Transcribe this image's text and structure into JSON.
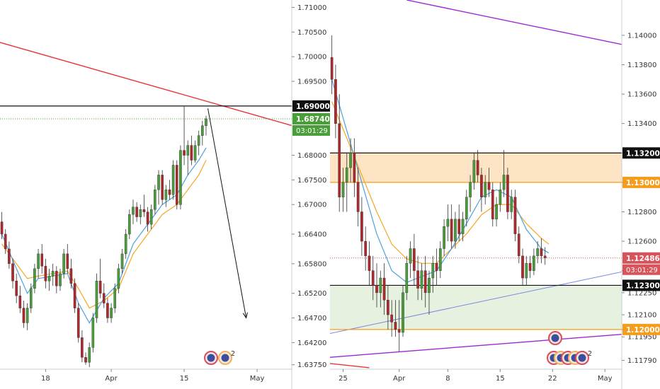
{
  "colors": {
    "up": "#4a9e3a",
    "down": "#b0282d",
    "ema_fast": "#4aa3df",
    "ema_slow": "#f5a623",
    "red_line": "#e8353a",
    "purple_line": "#9c27d6",
    "blue_line": "#7b88e0",
    "resistance_zone": "#fde4c4",
    "support_zone": "#e6f2df",
    "price_green": "#4a9e3a",
    "price_red": "#d9535a",
    "level_black": "#111111",
    "level_orange": "#f59c1a"
  },
  "chart_data": [
    {
      "type": "candlestick",
      "title": "",
      "y_ticks": [
        "1.71000",
        "1.70500",
        "1.70000",
        "1.69500",
        "1.69000",
        "1.68000",
        "1.67500",
        "1.67000",
        "1.66400",
        "1.65800",
        "1.65200",
        "1.64700",
        "1.64200",
        "1.63750"
      ],
      "y_tick_values": [
        1.71,
        1.705,
        1.7,
        1.695,
        1.69,
        1.68,
        1.675,
        1.67,
        1.664,
        1.658,
        1.652,
        1.647,
        1.642,
        1.6375
      ],
      "ylim": [
        1.6366,
        1.7115
      ],
      "x_ticks": [
        "18",
        "Apr",
        "15",
        "May"
      ],
      "x_tick_bars": [
        12,
        30,
        50,
        70
      ],
      "n_slots": 80,
      "ohlc": [
        [
          1.6665,
          1.6685,
          1.663,
          1.664
        ],
        [
          1.664,
          1.665,
          1.66,
          1.661
        ],
        [
          1.661,
          1.6625,
          1.657,
          1.658
        ],
        [
          1.658,
          1.659,
          1.653,
          1.6545
        ],
        [
          1.6545,
          1.656,
          1.65,
          1.6515
        ],
        [
          1.6515,
          1.6535,
          1.648,
          1.649
        ],
        [
          1.649,
          1.6505,
          1.645,
          1.646
        ],
        [
          1.646,
          1.65,
          1.6445,
          1.649
        ],
        [
          1.649,
          1.654,
          1.648,
          1.653
        ],
        [
          1.653,
          1.658,
          1.652,
          1.657
        ],
        [
          1.657,
          1.661,
          1.655,
          1.66
        ],
        [
          1.66,
          1.662,
          1.656,
          1.6575
        ],
        [
          1.6575,
          1.659,
          1.653,
          1.6545
        ],
        [
          1.6545,
          1.657,
          1.6525,
          1.6555
        ],
        [
          1.6555,
          1.658,
          1.6535,
          1.6565
        ],
        [
          1.6565,
          1.6575,
          1.652,
          1.6535
        ],
        [
          1.6535,
          1.657,
          1.6525,
          1.656
        ],
        [
          1.656,
          1.661,
          1.655,
          1.66
        ],
        [
          1.66,
          1.662,
          1.656,
          1.657
        ],
        [
          1.657,
          1.659,
          1.653,
          1.654
        ],
        [
          1.654,
          1.655,
          1.648,
          1.649
        ],
        [
          1.649,
          1.65,
          1.642,
          1.643
        ],
        [
          1.643,
          1.6445,
          1.638,
          1.639
        ],
        [
          1.639,
          1.64,
          1.6375,
          1.638
        ],
        [
          1.638,
          1.642,
          1.637,
          1.641
        ],
        [
          1.641,
          1.648,
          1.64,
          1.647
        ],
        [
          1.647,
          1.656,
          1.646,
          1.6545
        ],
        [
          1.6545,
          1.659,
          1.651,
          1.652
        ],
        [
          1.652,
          1.654,
          1.649,
          1.65
        ],
        [
          1.65,
          1.651,
          1.646,
          1.647
        ],
        [
          1.647,
          1.65,
          1.646,
          1.649
        ],
        [
          1.649,
          1.654,
          1.648,
          1.653
        ],
        [
          1.653,
          1.658,
          1.652,
          1.657
        ],
        [
          1.657,
          1.661,
          1.656,
          1.66
        ],
        [
          1.66,
          1.665,
          1.659,
          1.664
        ],
        [
          1.664,
          1.669,
          1.663,
          1.668
        ],
        [
          1.668,
          1.671,
          1.666,
          1.6695
        ],
        [
          1.6695,
          1.6705,
          1.6665,
          1.6675
        ],
        [
          1.6675,
          1.67,
          1.666,
          1.669
        ],
        [
          1.669,
          1.672,
          1.6675,
          1.6685
        ],
        [
          1.6685,
          1.6695,
          1.6645,
          1.666
        ],
        [
          1.666,
          1.67,
          1.665,
          1.669
        ],
        [
          1.669,
          1.674,
          1.668,
          1.673
        ],
        [
          1.673,
          1.677,
          1.67,
          1.676
        ],
        [
          1.676,
          1.677,
          1.67,
          1.671
        ],
        [
          1.671,
          1.674,
          1.6695,
          1.673
        ],
        [
          1.673,
          1.675,
          1.671,
          1.672
        ],
        [
          1.672,
          1.679,
          1.671,
          1.678
        ],
        [
          1.678,
          1.679,
          1.669,
          1.67
        ],
        [
          1.67,
          1.682,
          1.669,
          1.681
        ],
        [
          1.681,
          1.69,
          1.678,
          1.68
        ],
        [
          1.68,
          1.683,
          1.676,
          1.682
        ],
        [
          1.682,
          1.684,
          1.678,
          1.679
        ],
        [
          1.679,
          1.683,
          1.6785,
          1.682
        ],
        [
          1.682,
          1.685,
          1.68,
          1.684
        ],
        [
          1.684,
          1.687,
          1.682,
          1.686
        ],
        [
          1.686,
          1.688,
          1.684,
          1.6874
        ]
      ],
      "ema_fast": [
        [
          0,
          1.664
        ],
        [
          4,
          1.657
        ],
        [
          7,
          1.652
        ],
        [
          10,
          1.655
        ],
        [
          14,
          1.6555
        ],
        [
          18,
          1.656
        ],
        [
          21,
          1.65
        ],
        [
          24,
          1.646
        ],
        [
          28,
          1.651
        ],
        [
          32,
          1.654
        ],
        [
          36,
          1.662
        ],
        [
          40,
          1.666
        ],
        [
          44,
          1.67
        ],
        [
          48,
          1.672
        ],
        [
          51,
          1.676
        ],
        [
          54,
          1.679
        ],
        [
          56,
          1.6815
        ]
      ],
      "ema_slow": [
        [
          0,
          1.662
        ],
        [
          4,
          1.658
        ],
        [
          7,
          1.655
        ],
        [
          10,
          1.6555
        ],
        [
          14,
          1.656
        ],
        [
          18,
          1.6565
        ],
        [
          21,
          1.653
        ],
        [
          24,
          1.649
        ],
        [
          28,
          1.6505
        ],
        [
          32,
          1.653
        ],
        [
          36,
          1.66
        ],
        [
          40,
          1.664
        ],
        [
          44,
          1.668
        ],
        [
          48,
          1.67
        ],
        [
          51,
          1.673
        ],
        [
          54,
          1.676
        ],
        [
          56,
          1.679
        ]
      ],
      "level_line": 1.69,
      "trend_line": [
        [
          -1,
          1.703
        ],
        [
          82,
          1.6855
        ]
      ],
      "projection_arrow": [
        [
          56.5,
          1.6895
        ],
        [
          67,
          1.647
        ]
      ],
      "dotted_price": 1.6874,
      "price_label": "1.68740",
      "countdown": "03:01:29",
      "level_label": "1.69000"
    },
    {
      "type": "candlestick",
      "title": "",
      "y_ticks": [
        "1.14000",
        "1.13800",
        "1.13600",
        "1.13400",
        "1.13200",
        "1.13000",
        "1.12800",
        "1.12600",
        "1.12400",
        "1.12300",
        "1.12250",
        "1.12100",
        "1.12000",
        "1.11950",
        "1.11790"
      ],
      "y_tick_values": [
        1.14,
        1.138,
        1.136,
        1.134,
        1.132,
        1.13,
        1.128,
        1.126,
        1.124,
        1.123,
        1.1225,
        1.121,
        1.12,
        1.1195,
        1.1179
      ],
      "ylim": [
        1.1173,
        1.1424
      ],
      "x_ticks": [
        "25",
        "Apr",
        "8",
        "15",
        "22",
        "May"
      ],
      "x_tick_bars": [
        3,
        18,
        31,
        45,
        59,
        73
      ],
      "n_slots": 78,
      "ohlc": [
        [
          1.1385,
          1.14,
          1.136,
          1.137
        ],
        [
          1.137,
          1.138,
          1.133,
          1.134
        ],
        [
          1.134,
          1.136,
          1.128,
          1.129
        ],
        [
          1.129,
          1.131,
          1.128,
          1.13
        ],
        [
          1.13,
          1.132,
          1.128,
          1.131
        ],
        [
          1.131,
          1.133,
          1.13,
          1.132
        ],
        [
          1.132,
          1.133,
          1.129,
          1.13
        ],
        [
          1.13,
          1.131,
          1.127,
          1.128
        ],
        [
          1.128,
          1.129,
          1.125,
          1.126
        ],
        [
          1.126,
          1.127,
          1.124,
          1.125
        ],
        [
          1.125,
          1.126,
          1.123,
          1.124
        ],
        [
          1.124,
          1.125,
          1.122,
          1.123
        ],
        [
          1.123,
          1.1245,
          1.1215,
          1.1225
        ],
        [
          1.1225,
          1.124,
          1.1215,
          1.1235
        ],
        [
          1.1235,
          1.1245,
          1.121,
          1.122
        ],
        [
          1.122,
          1.123,
          1.12,
          1.121
        ],
        [
          1.121,
          1.122,
          1.1195,
          1.1205
        ],
        [
          1.1205,
          1.122,
          1.1195,
          1.12
        ],
        [
          1.12,
          1.122,
          1.1185,
          1.1198
        ],
        [
          1.1198,
          1.123,
          1.1195,
          1.1225
        ],
        [
          1.1225,
          1.125,
          1.122,
          1.1245
        ],
        [
          1.1245,
          1.126,
          1.1235,
          1.1255
        ],
        [
          1.1255,
          1.1265,
          1.123,
          1.124
        ],
        [
          1.124,
          1.125,
          1.122,
          1.1228
        ],
        [
          1.1228,
          1.1245,
          1.122,
          1.124
        ],
        [
          1.124,
          1.125,
          1.1215,
          1.1225
        ],
        [
          1.1225,
          1.124,
          1.121,
          1.1235
        ],
        [
          1.1235,
          1.125,
          1.1225,
          1.1245
        ],
        [
          1.1245,
          1.1255,
          1.123,
          1.124
        ],
        [
          1.124,
          1.126,
          1.1235,
          1.1255
        ],
        [
          1.1255,
          1.1275,
          1.125,
          1.127
        ],
        [
          1.127,
          1.1285,
          1.126,
          1.1275
        ],
        [
          1.1275,
          1.1285,
          1.1255,
          1.126
        ],
        [
          1.126,
          1.128,
          1.1255,
          1.1275
        ],
        [
          1.1275,
          1.1285,
          1.126,
          1.1265
        ],
        [
          1.1265,
          1.128,
          1.126,
          1.1275
        ],
        [
          1.1275,
          1.1295,
          1.127,
          1.129
        ],
        [
          1.129,
          1.1305,
          1.128,
          1.13
        ],
        [
          1.13,
          1.132,
          1.1295,
          1.1315
        ],
        [
          1.1315,
          1.1322,
          1.13,
          1.1305
        ],
        [
          1.1305,
          1.131,
          1.128,
          1.129
        ],
        [
          1.129,
          1.1305,
          1.1285,
          1.13
        ],
        [
          1.13,
          1.131,
          1.129,
          1.1295
        ],
        [
          1.1295,
          1.13,
          1.127,
          1.1275
        ],
        [
          1.1275,
          1.129,
          1.127,
          1.1285
        ],
        [
          1.1285,
          1.13,
          1.128,
          1.1295
        ],
        [
          1.1295,
          1.1322,
          1.129,
          1.1305
        ],
        [
          1.1305,
          1.131,
          1.1275,
          1.128
        ],
        [
          1.128,
          1.1295,
          1.1275,
          1.129
        ],
        [
          1.129,
          1.1295,
          1.126,
          1.1265
        ],
        [
          1.1265,
          1.127,
          1.1245,
          1.125
        ],
        [
          1.125,
          1.1255,
          1.123,
          1.1235
        ],
        [
          1.1235,
          1.125,
          1.123,
          1.1245
        ],
        [
          1.1245,
          1.125,
          1.1235,
          1.124
        ],
        [
          1.124,
          1.1255,
          1.1237,
          1.125
        ],
        [
          1.125,
          1.126,
          1.1245,
          1.1255
        ],
        [
          1.1255,
          1.1262,
          1.1245,
          1.125
        ],
        [
          1.125,
          1.1256,
          1.1244,
          1.12486
        ]
      ],
      "ema_fast": [
        [
          0,
          1.137
        ],
        [
          4,
          1.1335
        ],
        [
          8,
          1.13
        ],
        [
          12,
          1.1265
        ],
        [
          16,
          1.124
        ],
        [
          20,
          1.1232
        ],
        [
          24,
          1.1236
        ],
        [
          28,
          1.124
        ],
        [
          32,
          1.1255
        ],
        [
          36,
          1.1272
        ],
        [
          40,
          1.129
        ],
        [
          44,
          1.1295
        ],
        [
          48,
          1.129
        ],
        [
          52,
          1.1268
        ],
        [
          56,
          1.1255
        ],
        [
          58,
          1.1252
        ]
      ],
      "ema_slow": [
        [
          0,
          1.1355
        ],
        [
          4,
          1.133
        ],
        [
          8,
          1.1305
        ],
        [
          12,
          1.128
        ],
        [
          16,
          1.1258
        ],
        [
          20,
          1.1248
        ],
        [
          24,
          1.1245
        ],
        [
          28,
          1.1245
        ],
        [
          32,
          1.1255
        ],
        [
          36,
          1.1265
        ],
        [
          40,
          1.1278
        ],
        [
          44,
          1.1285
        ],
        [
          48,
          1.1285
        ],
        [
          52,
          1.1272
        ],
        [
          56,
          1.1262
        ],
        [
          58,
          1.1258
        ]
      ],
      "resistance_zone": [
        1.13,
        1.132
      ],
      "support_zone": [
        1.12,
        1.123
      ],
      "level_labels": [
        "1.13200",
        "1.13000",
        "1.12300",
        "1.12000"
      ],
      "level_values": [
        1.132,
        1.13,
        1.123,
        1.12
      ],
      "blue_trend": [
        [
          -1,
          1.1197
        ],
        [
          79,
          1.124
        ]
      ],
      "purple_top": [
        [
          20,
          1.1424
        ],
        [
          79,
          1.1393
        ]
      ],
      "purple_bottom": [
        [
          -1,
          1.1181
        ],
        [
          79,
          1.1197
        ]
      ],
      "red_bottom": [
        [
          -1,
          1.1177
        ],
        [
          10,
          1.1174
        ]
      ],
      "dotted_price": 1.12486,
      "price_label": "1.12486",
      "countdown": "03:01:29",
      "event_markers": [
        "2",
        "2",
        "2",
        "4",
        "2"
      ]
    }
  ],
  "left_event_markers": [
    "2"
  ]
}
